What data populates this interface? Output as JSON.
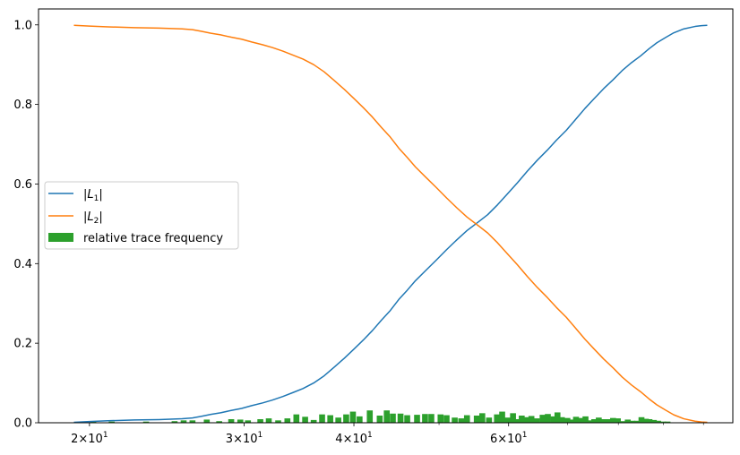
{
  "chart_data": {
    "type": "line",
    "title": "",
    "xlabel": "",
    "ylabel": "",
    "x_scale": "log",
    "xlim": [
      17.5,
      108
    ],
    "ylim": [
      0,
      1.04
    ],
    "y_ticks": [
      0.0,
      0.2,
      0.4,
      0.6,
      0.8,
      1.0
    ],
    "y_tick_labels": [
      "0.0",
      "0.2",
      "0.4",
      "0.6",
      "0.8",
      "1.0"
    ],
    "x_ticks": [
      {
        "value": 20,
        "base": "2",
        "exp": "1"
      },
      {
        "value": 30,
        "base": "3",
        "exp": "1"
      },
      {
        "value": 40,
        "base": "4",
        "exp": "1"
      },
      {
        "value": 60,
        "base": "6",
        "exp": "1"
      }
    ],
    "x_minor_ticks": [
      50,
      70,
      80,
      90,
      100
    ],
    "grid": false,
    "legend_position": "center-left",
    "colors": {
      "L1": "#1f77b4",
      "L2": "#ff7f0e",
      "bars": "#2ca02c"
    },
    "series": [
      {
        "key": "L1",
        "legend_label": "|L1|",
        "legend_parts": {
          "pre": "|",
          "sym": "L",
          "sub": "1",
          "post": "|"
        },
        "x": [
          19.2,
          20,
          21,
          22.5,
          24,
          25.5,
          26.2,
          26.8,
          27.5,
          28.2,
          29,
          29.8,
          30.6,
          31.5,
          32.3,
          33.2,
          34.1,
          35,
          36,
          37,
          38,
          39,
          40,
          41,
          42,
          43,
          44,
          45,
          46,
          47,
          48.3,
          49.6,
          51,
          52.4,
          53.8,
          55.3,
          56.8,
          58.3,
          59.8,
          61.4,
          63,
          64.7,
          66.4,
          68,
          69.8,
          71.5,
          73.3,
          75.1,
          77,
          78.9,
          80.8,
          82.8,
          84.8,
          86.7,
          88.5,
          90.5,
          92.5,
          95,
          97.8,
          99.5,
          101
        ],
        "y": [
          0.001,
          0.003,
          0.005,
          0.007,
          0.008,
          0.01,
          0.012,
          0.016,
          0.021,
          0.025,
          0.031,
          0.036,
          0.043,
          0.05,
          0.057,
          0.066,
          0.076,
          0.086,
          0.1,
          0.118,
          0.14,
          0.162,
          0.185,
          0.208,
          0.232,
          0.258,
          0.282,
          0.31,
          0.333,
          0.357,
          0.383,
          0.408,
          0.435,
          0.46,
          0.483,
          0.503,
          0.523,
          0.548,
          0.575,
          0.603,
          0.632,
          0.66,
          0.685,
          0.71,
          0.735,
          0.762,
          0.79,
          0.815,
          0.84,
          0.862,
          0.885,
          0.905,
          0.922,
          0.94,
          0.955,
          0.968,
          0.98,
          0.99,
          0.996,
          0.998,
          0.999
        ]
      },
      {
        "key": "L2",
        "legend_label": "|L2|",
        "legend_parts": {
          "pre": "|",
          "sym": "L",
          "sub": "2",
          "post": "|"
        },
        "x": [
          19.2,
          20,
          21,
          22.5,
          24,
          25.5,
          26.2,
          26.8,
          27.5,
          28.2,
          29,
          29.8,
          30.6,
          31.5,
          32.3,
          33.2,
          34.1,
          35,
          36,
          37,
          38,
          39,
          40,
          41,
          42,
          43,
          44,
          45,
          46,
          47,
          48.3,
          49.6,
          51,
          52.4,
          53.8,
          55.3,
          56.8,
          58.3,
          59.8,
          61.4,
          63,
          64.7,
          66.4,
          68,
          69.8,
          71.5,
          73.3,
          75.1,
          77,
          78.9,
          80.8,
          82.8,
          84.8,
          86.7,
          88.5,
          90.5,
          92.5,
          95,
          97.8,
          99.5,
          101
        ],
        "y": [
          0.999,
          0.997,
          0.995,
          0.993,
          0.992,
          0.99,
          0.988,
          0.984,
          0.979,
          0.975,
          0.969,
          0.964,
          0.957,
          0.95,
          0.943,
          0.934,
          0.924,
          0.914,
          0.9,
          0.882,
          0.86,
          0.838,
          0.815,
          0.792,
          0.768,
          0.742,
          0.718,
          0.69,
          0.667,
          0.643,
          0.617,
          0.592,
          0.565,
          0.54,
          0.517,
          0.497,
          0.477,
          0.452,
          0.425,
          0.397,
          0.368,
          0.34,
          0.315,
          0.29,
          0.265,
          0.238,
          0.21,
          0.185,
          0.16,
          0.138,
          0.115,
          0.095,
          0.078,
          0.06,
          0.045,
          0.032,
          0.02,
          0.01,
          0.004,
          0.002,
          0.001
        ]
      }
    ],
    "bars": {
      "legend_label": "relative trace frequency",
      "x": [
        19.6,
        20.2,
        21.2,
        23.2,
        25,
        25.6,
        26.2,
        27.2,
        28.1,
        29,
        29.7,
        30.3,
        31.3,
        32,
        32.8,
        33.6,
        34.4,
        35.2,
        36,
        36.8,
        37.6,
        38.4,
        39.2,
        39.9,
        40.6,
        41.7,
        42.8,
        43.6,
        44.3,
        45.2,
        46,
        47.2,
        48.2,
        49,
        50.2,
        51,
        52.1,
        53,
        53.8,
        55.2,
        56,
        57,
        58.2,
        59,
        59.8,
        60.7,
        61.4,
        62.1,
        62.9,
        63.7,
        64.6,
        65.6,
        66.5,
        67.5,
        68.2,
        69,
        70,
        70.9,
        71.6,
        72.5,
        73.4,
        74.2,
        75.1,
        76,
        76.8,
        77.8,
        78.9,
        79.9,
        80.9,
        82,
        83,
        84,
        85,
        86,
        86.8,
        87.8,
        88.8,
        90,
        91
      ],
      "y": [
        0.003,
        0.003,
        0.003,
        0.003,
        0.004,
        0.006,
        0.006,
        0.008,
        0.004,
        0.009,
        0.008,
        0.006,
        0.009,
        0.011,
        0.006,
        0.011,
        0.021,
        0.015,
        0.007,
        0.021,
        0.019,
        0.013,
        0.021,
        0.028,
        0.016,
        0.031,
        0.018,
        0.031,
        0.023,
        0.023,
        0.019,
        0.02,
        0.022,
        0.022,
        0.021,
        0.019,
        0.013,
        0.011,
        0.019,
        0.018,
        0.024,
        0.013,
        0.021,
        0.028,
        0.013,
        0.024,
        0.009,
        0.018,
        0.014,
        0.017,
        0.011,
        0.02,
        0.022,
        0.016,
        0.026,
        0.014,
        0.012,
        0.008,
        0.015,
        0.012,
        0.016,
        0.006,
        0.009,
        0.013,
        0.009,
        0.009,
        0.012,
        0.011,
        0.004,
        0.008,
        0.005,
        0.005,
        0.014,
        0.01,
        0.009,
        0.007,
        0.005,
        0.003,
        0.003
      ]
    }
  }
}
